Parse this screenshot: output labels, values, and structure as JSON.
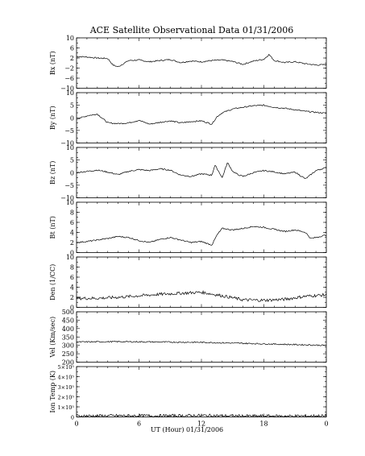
{
  "chart_data": {
    "title": "ACE Satellite Observational Data   01/31/2006",
    "xlabel": "UT (Hour)   01/31/2006",
    "type": "line",
    "x_range": [
      0,
      24
    ],
    "x_ticks": [
      "0",
      "6",
      "12",
      "18",
      "0"
    ],
    "panels": [
      {
        "id": "bx",
        "ylabel": "Bx (nT)",
        "ylim": [
          -10,
          10
        ],
        "y_ticks": [
          "10",
          "6",
          "2",
          "−2",
          "−6",
          "−10"
        ],
        "y_tick_values": [
          10,
          6,
          2,
          -2,
          -6,
          -10
        ],
        "x": [
          0,
          1,
          2,
          3,
          3.5,
          4,
          5,
          6,
          7,
          8,
          9,
          10,
          11,
          12,
          13,
          14,
          15,
          16,
          17,
          18,
          18.5,
          19,
          20,
          21,
          22,
          23,
          24
        ],
        "values": [
          2.6,
          2.4,
          2.0,
          1.8,
          -0.8,
          -1.5,
          1.0,
          1.2,
          0.5,
          1.0,
          1.4,
          0.2,
          0.8,
          0.5,
          1.0,
          1.2,
          0.6,
          -0.5,
          0.8,
          1.5,
          3.4,
          1.0,
          0.2,
          0.5,
          -0.3,
          -0.8,
          -0.6
        ]
      },
      {
        "id": "by",
        "ylabel": "By (nT)",
        "ylim": [
          -10,
          10
        ],
        "y_ticks": [
          "10",
          "5",
          "0",
          "−5",
          "−10"
        ],
        "y_tick_values": [
          10,
          5,
          0,
          -5,
          -10
        ],
        "x": [
          0,
          1,
          2,
          3,
          4,
          5,
          6,
          7,
          8,
          9,
          10,
          11,
          12,
          13,
          13.5,
          14,
          15,
          16,
          17,
          18,
          19,
          20,
          21,
          22,
          23,
          24
        ],
        "values": [
          -0.5,
          0.8,
          1.5,
          -2.0,
          -2.3,
          -2.0,
          -1.0,
          -2.5,
          -1.8,
          -1.2,
          -2.0,
          -1.5,
          -1.2,
          -2.5,
          0.5,
          2.0,
          3.5,
          4.2,
          4.8,
          5.0,
          4.2,
          3.8,
          3.2,
          2.6,
          2.2,
          1.8
        ]
      },
      {
        "id": "bz",
        "ylabel": "Bz (nT)",
        "ylim": [
          -10,
          10
        ],
        "y_ticks": [
          "10",
          "5",
          "0",
          "−5",
          "−10"
        ],
        "y_tick_values": [
          10,
          5,
          0,
          -5,
          -10
        ],
        "x": [
          0,
          1,
          2,
          3,
          4,
          5,
          6,
          7,
          8,
          9,
          10,
          11,
          12,
          13,
          13.3,
          14,
          14.5,
          15,
          15.5,
          16,
          17,
          18,
          19,
          20,
          21,
          22,
          23,
          24
        ],
        "values": [
          0.0,
          0.5,
          1.0,
          0.2,
          -0.8,
          0.5,
          1.2,
          0.8,
          1.5,
          1.0,
          -1.0,
          -1.5,
          -0.5,
          -1.0,
          3.0,
          -2.0,
          4.0,
          0.5,
          -0.8,
          -1.5,
          0.0,
          0.8,
          0.3,
          -0.5,
          0.2,
          -2.5,
          0.8,
          2.0
        ]
      },
      {
        "id": "bt",
        "ylabel": "Bt (nT)",
        "ylim": [
          0,
          10
        ],
        "y_ticks": [
          "10",
          "8",
          "6",
          "4",
          "2",
          "0"
        ],
        "y_tick_values": [
          10,
          8,
          6,
          4,
          2,
          0
        ],
        "x": [
          0,
          1,
          2,
          3,
          4,
          5,
          6,
          7,
          8,
          9,
          10,
          11,
          12,
          13,
          13.5,
          14,
          15,
          16,
          17,
          18,
          19,
          20,
          21,
          22,
          22.5,
          23,
          24
        ],
        "values": [
          2.0,
          2.2,
          2.5,
          2.8,
          3.2,
          3.0,
          2.4,
          2.0,
          2.6,
          3.0,
          2.5,
          2.0,
          2.2,
          1.5,
          3.5,
          4.8,
          4.5,
          4.8,
          5.2,
          5.0,
          4.6,
          4.2,
          4.5,
          4.0,
          2.8,
          3.0,
          3.5
        ]
      },
      {
        "id": "den",
        "ylabel": "Den (1/CC)",
        "ylim": [
          0,
          10
        ],
        "y_ticks": [
          "10",
          "8",
          "6",
          "4",
          "2",
          "0"
        ],
        "y_tick_values": [
          10,
          8,
          6,
          4,
          2,
          0
        ],
        "x": [
          0,
          2,
          4,
          6,
          8,
          10,
          12,
          14,
          16,
          18,
          20,
          22,
          24
        ],
        "values": [
          1.8,
          1.8,
          2.0,
          2.3,
          2.6,
          2.8,
          3.0,
          2.3,
          1.5,
          1.4,
          1.6,
          2.2,
          2.5
        ],
        "noisy": true
      },
      {
        "id": "vel",
        "ylabel": "Vel (Km/sec)",
        "ylim": [
          200,
          500
        ],
        "y_ticks": [
          "500",
          "450",
          "400",
          "350",
          "300",
          "250",
          "200"
        ],
        "y_tick_values": [
          500,
          450,
          400,
          350,
          300,
          250,
          200
        ],
        "x": [
          0,
          4,
          8,
          12,
          16,
          20,
          24
        ],
        "values": [
          320,
          322,
          320,
          318,
          312,
          306,
          300
        ]
      },
      {
        "id": "temp",
        "ylabel": "Ion Temp (K)",
        "ylim": [
          0,
          500000
        ],
        "y_ticks": [
          "5×10⁵",
          "4×10⁵",
          "3×10⁵",
          "2×10⁵",
          "1×10⁵",
          "0"
        ],
        "y_tick_values": [
          500000,
          400000,
          300000,
          200000,
          100000,
          0
        ],
        "x": [
          0,
          4,
          8,
          12,
          16,
          20,
          24
        ],
        "values": [
          10000,
          12000,
          11000,
          14000,
          9000,
          8000,
          10000
        ],
        "noisy": true
      }
    ]
  }
}
